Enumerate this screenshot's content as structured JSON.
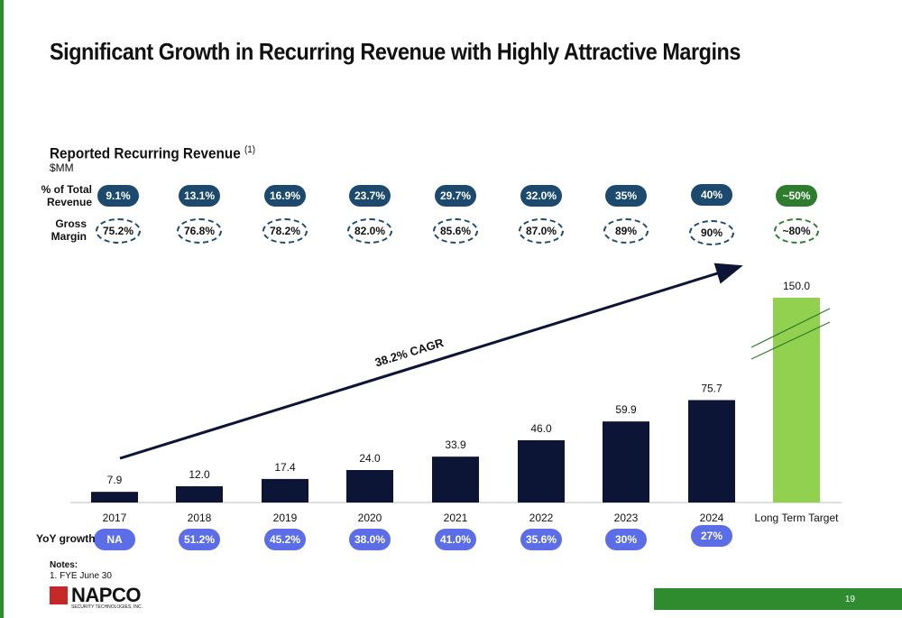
{
  "title": "Significant Growth in Recurring Revenue with Highly Attractive Margins",
  "subtitle": "Reported Recurring Revenue",
  "subtitle_note": "(1)",
  "unit": "$MM",
  "labels": {
    "pct_total_line1": "% of Total",
    "pct_total_line2": "Revenue",
    "gross_line1": "Gross",
    "gross_line2": "Margin",
    "yoy": "YoY growth"
  },
  "pct_of_total": [
    "9.1%",
    "13.1%",
    "16.9%",
    "23.7%",
    "29.7%",
    "32.0%",
    "35%",
    "40%",
    "~50%"
  ],
  "gross_margin": [
    "75.2%",
    "76.8%",
    "78.2%",
    "82.0%",
    "85.6%",
    "87.0%",
    "89%",
    "90%",
    "~80%"
  ],
  "yoy_growth": [
    "NA",
    "51.2%",
    "45.2%",
    "38.0%",
    "41.0%",
    "35.6%",
    "30%",
    "27%"
  ],
  "cagr_label": "38.2% CAGR",
  "colors": {
    "bar": "#0d1537",
    "target_bar": "#92d050",
    "navy_pill": "#1c4a6e",
    "green_pill": "#2e7d2e",
    "blue_pill": "#5b6ee8",
    "brand_green": "#2e8b2e",
    "logo_red": "#c62828"
  },
  "chart_data": {
    "type": "bar",
    "categories": [
      "2017",
      "2018",
      "2019",
      "2020",
      "2021",
      "2022",
      "2023",
      "2024",
      "Long Term Target"
    ],
    "values": [
      7.9,
      12.0,
      17.4,
      24.0,
      33.9,
      46.0,
      59.9,
      75.7,
      150.0
    ],
    "value_labels": [
      "7.9",
      "12.0",
      "17.4",
      "24.0",
      "33.9",
      "46.0",
      "59.9",
      "75.7",
      "150.0"
    ],
    "title": "Reported Recurring Revenue",
    "ylabel": "$MM",
    "broken_axis_on": "Long Term Target",
    "ylim": [
      0,
      100
    ]
  },
  "notes": {
    "heading": "Notes:",
    "items": [
      "1.    FYE June 30"
    ]
  },
  "logo": {
    "name": "NAPCO",
    "tagline": "SECURITY TECHNOLOGIES, INC."
  },
  "page_number": "19"
}
